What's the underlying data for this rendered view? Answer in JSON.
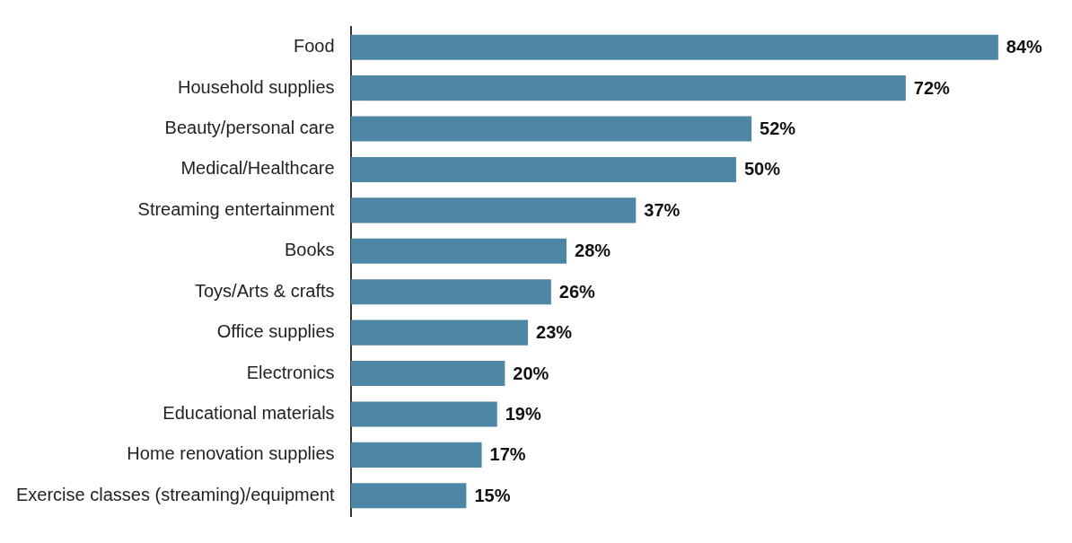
{
  "chart_data": {
    "type": "bar",
    "orientation": "horizontal",
    "color": "#4e86a6",
    "grid": false,
    "legend": false,
    "categories": [
      "Food",
      "Household supplies",
      "Beauty/personal care",
      "Medical/Healthcare",
      "Streaming entertainment",
      "Books",
      "Toys/Arts & crafts",
      "Office supplies",
      "Electronics",
      "Educational materials",
      "Home renovation supplies",
      "Exercise classes (streaming)/equipment"
    ],
    "values": [
      84,
      72,
      52,
      50,
      37,
      28,
      26,
      23,
      20,
      19,
      17,
      15
    ],
    "value_labels": [
      "84%",
      "72%",
      "52%",
      "50%",
      "37%",
      "28%",
      "26%",
      "23%",
      "20%",
      "19%",
      "17%",
      "15%"
    ]
  }
}
